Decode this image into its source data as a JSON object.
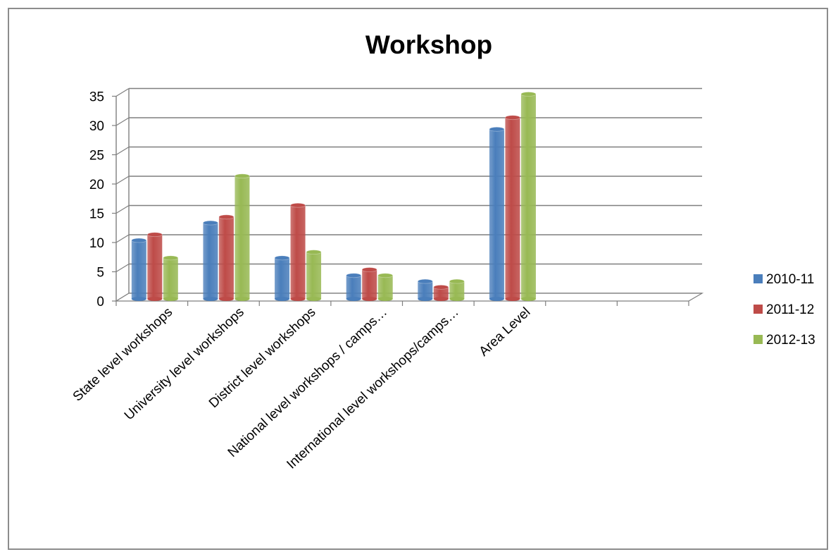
{
  "chart_data": {
    "type": "bar",
    "title": "Workshop",
    "xlabel": "",
    "ylabel": "",
    "ylim": [
      0,
      35
    ],
    "yticks": [
      0,
      5,
      10,
      15,
      20,
      25,
      30,
      35
    ],
    "grid": true,
    "legend_position": "right",
    "categories": [
      "State level workshops",
      "University level workshops",
      "District level workshops",
      "National  level workshops / camps…",
      "International  level workshops/camps…",
      "Area Level",
      "",
      ""
    ],
    "series": [
      {
        "name": "2010-11",
        "color": "#4a7ebb",
        "values": [
          10,
          13,
          7,
          4,
          3,
          29,
          null,
          null
        ]
      },
      {
        "name": "2011-12",
        "color": "#be4b48",
        "values": [
          11,
          14,
          16,
          5,
          2,
          31,
          null,
          null
        ]
      },
      {
        "name": "2012-13",
        "color": "#98b954",
        "values": [
          7,
          21,
          8,
          4,
          3,
          35,
          null,
          null
        ]
      }
    ]
  }
}
